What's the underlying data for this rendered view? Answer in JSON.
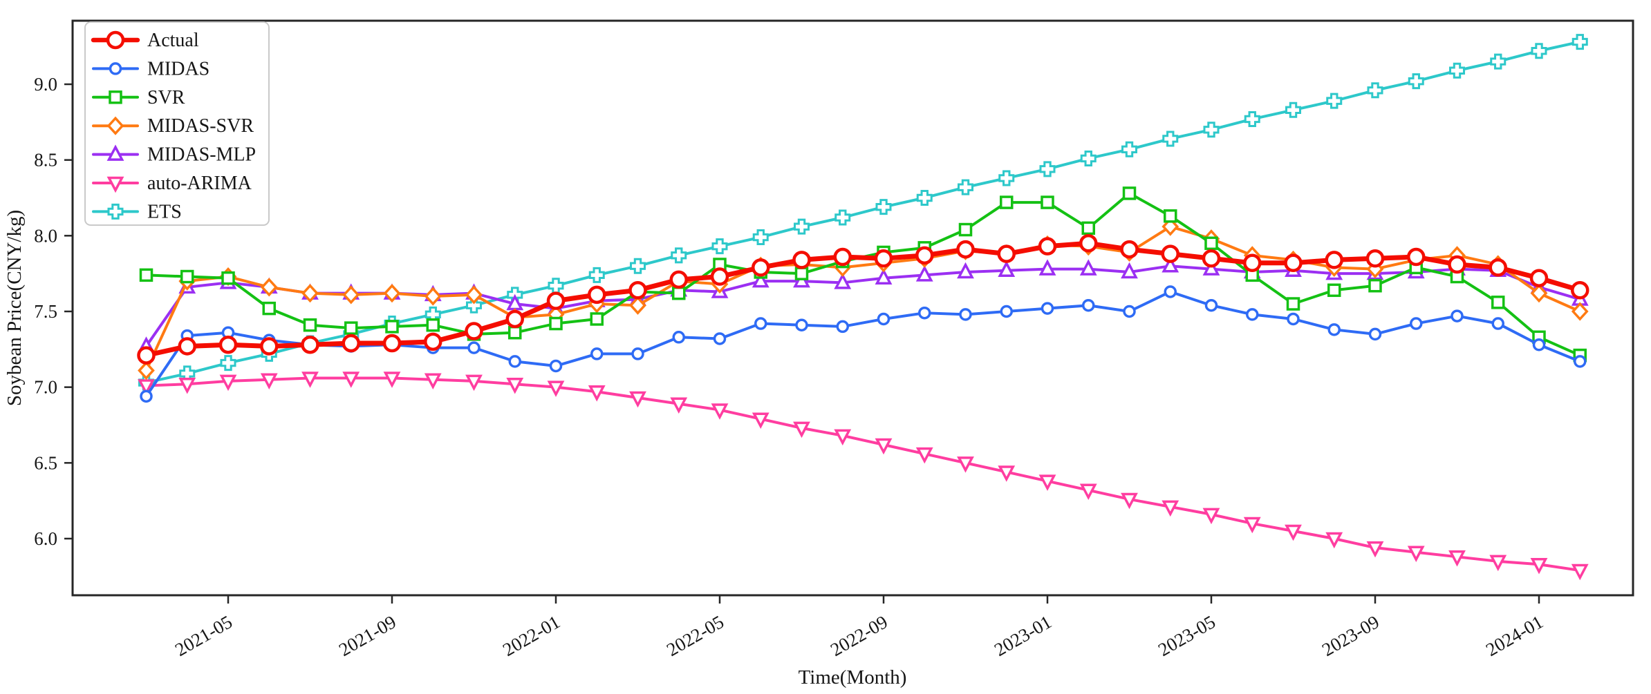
{
  "chart_data": {
    "type": "line",
    "title": "",
    "xlabel": "Time(Month)",
    "ylabel": "Soybean Price(CNY/kg)",
    "x": [
      "2021-03",
      "2021-04",
      "2021-05",
      "2021-06",
      "2021-07",
      "2021-08",
      "2021-09",
      "2021-10",
      "2021-11",
      "2021-12",
      "2022-01",
      "2022-02",
      "2022-03",
      "2022-04",
      "2022-05",
      "2022-06",
      "2022-07",
      "2022-08",
      "2022-09",
      "2022-10",
      "2022-11",
      "2022-12",
      "2023-01",
      "2023-02",
      "2023-03",
      "2023-04",
      "2023-05",
      "2023-06",
      "2023-07",
      "2023-08",
      "2023-09",
      "2023-10",
      "2023-11",
      "2023-12",
      "2024-01",
      "2024-02"
    ],
    "x_tick_labels": [
      "2021-05",
      "2021-09",
      "2022-01",
      "2022-05",
      "2022-09",
      "2023-01",
      "2023-05",
      "2023-09",
      "2024-01"
    ],
    "x_tick_indices": [
      2,
      6,
      10,
      14,
      18,
      22,
      26,
      30,
      34
    ],
    "y_ticks": [
      "6.0",
      "6.5",
      "7.0",
      "7.5",
      "8.0",
      "8.5",
      "9.0"
    ],
    "ylim": [
      5.63,
      9.42
    ],
    "grid": "off",
    "legend_position": "upper left",
    "series": [
      {
        "name": "Actual",
        "color": "#f40d00",
        "marker": "circle-large",
        "linewidth": 7,
        "values": [
          7.21,
          7.27,
          7.28,
          7.27,
          7.28,
          7.29,
          7.29,
          7.3,
          7.37,
          7.45,
          7.57,
          7.61,
          7.64,
          7.71,
          7.73,
          7.79,
          7.84,
          7.86,
          7.85,
          7.87,
          7.91,
          7.88,
          7.93,
          7.95,
          7.91,
          7.88,
          7.85,
          7.82,
          7.82,
          7.84,
          7.85,
          7.86,
          7.81,
          7.79,
          7.72,
          7.64
        ]
      },
      {
        "name": "MIDAS",
        "color": "#2e6bf5",
        "marker": "circle",
        "linewidth": 4,
        "values": [
          6.94,
          7.34,
          7.36,
          7.31,
          7.28,
          7.27,
          7.28,
          7.26,
          7.26,
          7.17,
          7.14,
          7.22,
          7.22,
          7.33,
          7.32,
          7.42,
          7.41,
          7.4,
          7.45,
          7.49,
          7.48,
          7.5,
          7.52,
          7.54,
          7.5,
          7.63,
          7.54,
          7.48,
          7.45,
          7.38,
          7.35,
          7.42,
          7.47,
          7.42,
          7.28,
          7.17
        ]
      },
      {
        "name": "SVR",
        "color": "#14c114",
        "marker": "square",
        "linewidth": 4,
        "values": [
          7.74,
          7.73,
          7.72,
          7.52,
          7.41,
          7.39,
          7.4,
          7.41,
          7.35,
          7.36,
          7.42,
          7.45,
          7.63,
          7.62,
          7.81,
          7.76,
          7.75,
          7.83,
          7.89,
          7.92,
          8.04,
          8.22,
          8.22,
          8.05,
          8.28,
          8.13,
          7.95,
          7.74,
          7.55,
          7.64,
          7.67,
          7.79,
          7.73,
          7.56,
          7.33,
          7.21
        ]
      },
      {
        "name": "MIDAS-SVR",
        "color": "#ff7a12",
        "marker": "diamond",
        "linewidth": 4,
        "values": [
          7.11,
          7.7,
          7.73,
          7.66,
          7.62,
          7.61,
          7.62,
          7.6,
          7.61,
          7.46,
          7.48,
          7.55,
          7.54,
          7.7,
          7.68,
          7.8,
          7.81,
          7.79,
          7.82,
          7.85,
          7.9,
          7.88,
          7.94,
          7.93,
          7.89,
          8.06,
          7.98,
          7.87,
          7.84,
          7.79,
          7.78,
          7.84,
          7.87,
          7.81,
          7.62,
          7.5
        ]
      },
      {
        "name": "MIDAS-MLP",
        "color": "#9b2ff2",
        "marker": "triangle-up",
        "linewidth": 4,
        "values": [
          7.27,
          7.66,
          7.69,
          7.66,
          7.62,
          7.62,
          7.62,
          7.61,
          7.62,
          7.55,
          7.52,
          7.57,
          7.58,
          7.64,
          7.63,
          7.7,
          7.7,
          7.69,
          7.72,
          7.74,
          7.76,
          7.77,
          7.78,
          7.78,
          7.76,
          7.8,
          7.78,
          7.76,
          7.77,
          7.75,
          7.75,
          7.76,
          7.78,
          7.77,
          7.66,
          7.58
        ]
      },
      {
        "name": "auto-ARIMA",
        "color": "#ff3da0",
        "marker": "triangle-down",
        "linewidth": 4,
        "values": [
          7.01,
          7.02,
          7.04,
          7.05,
          7.06,
          7.06,
          7.06,
          7.05,
          7.04,
          7.02,
          7.0,
          6.97,
          6.93,
          6.89,
          6.85,
          6.79,
          6.73,
          6.68,
          6.62,
          6.56,
          6.5,
          6.44,
          6.38,
          6.32,
          6.26,
          6.21,
          6.16,
          6.1,
          6.05,
          6.0,
          5.94,
          5.91,
          5.88,
          5.85,
          5.83,
          5.79
        ]
      },
      {
        "name": "ETS",
        "color": "#2dc8ca",
        "marker": "plus",
        "linewidth": 4,
        "values": [
          7.03,
          7.09,
          7.16,
          7.22,
          7.29,
          7.35,
          7.42,
          7.48,
          7.54,
          7.61,
          7.67,
          7.74,
          7.8,
          7.87,
          7.93,
          7.99,
          8.06,
          8.12,
          8.19,
          8.25,
          8.32,
          8.38,
          8.44,
          8.51,
          8.57,
          8.64,
          8.7,
          8.77,
          8.83,
          8.89,
          8.96,
          9.02,
          9.09,
          9.15,
          9.22,
          9.28
        ]
      }
    ]
  }
}
